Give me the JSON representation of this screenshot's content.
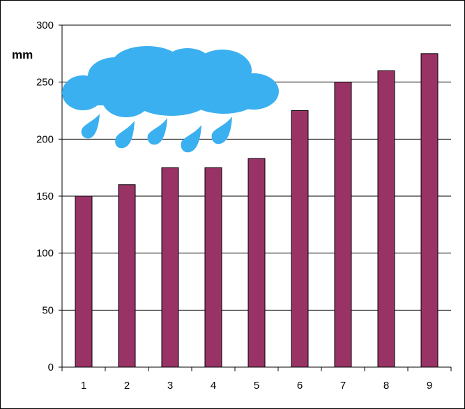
{
  "chart_data": {
    "type": "bar",
    "title": "",
    "xlabel": "",
    "ylabel": "mm",
    "categories": [
      "1",
      "2",
      "3",
      "4",
      "5",
      "6",
      "7",
      "8",
      "9"
    ],
    "values": [
      150,
      160,
      175,
      175,
      183,
      225,
      250,
      260,
      275
    ],
    "ylim": [
      0,
      300
    ],
    "yticks": [
      0,
      50,
      100,
      150,
      200,
      250,
      300
    ],
    "grid": true,
    "legend": "none",
    "bar_color": "#993366",
    "decoration": "rain-cloud-icon"
  },
  "colors": {
    "bar": "#993366",
    "cloud": "#3bb0f0",
    "grid": "#000000"
  }
}
